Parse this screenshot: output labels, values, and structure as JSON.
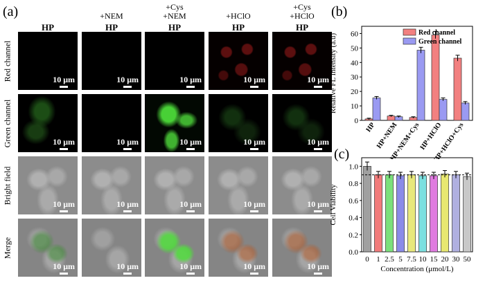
{
  "panels": {
    "a": "(a)",
    "b": "(b)",
    "c": "(c)"
  },
  "columns": [
    {
      "head": [
        "",
        ""
      ],
      "probe": "HP"
    },
    {
      "head": [
        "",
        "+NEM"
      ],
      "probe": "HP"
    },
    {
      "head": [
        "+Cys",
        "+NEM"
      ],
      "probe": "HP"
    },
    {
      "head": [
        "",
        "+HClO"
      ],
      "probe": "HP"
    },
    {
      "head": [
        "+Cys",
        "+HClO"
      ],
      "probe": "HP"
    }
  ],
  "rows": [
    "Red channel",
    "Green channel",
    "Bright field",
    "Merge"
  ],
  "scale_bar": "10 μm",
  "chart_data": [
    {
      "type": "bar",
      "panel": "(b)",
      "categories": [
        "HP",
        "HP+NEM",
        "HP+NEM+Cys",
        "HP+HClO",
        "HP+HClO+Cys"
      ],
      "series": [
        {
          "name": "Red channel",
          "color": "#f28080",
          "values": [
            1,
            3,
            2,
            59,
            43
          ],
          "errors": [
            0.5,
            0.5,
            0.5,
            2.5,
            2
          ]
        },
        {
          "name": "Green channel",
          "color": "#9a9af2",
          "values": [
            15.5,
            2.5,
            48.5,
            14.5,
            12
          ],
          "errors": [
            1,
            0.5,
            2,
            1,
            1
          ]
        }
      ],
      "xlabel": "",
      "ylabel": "Relative FL Intensity (a.u)",
      "ylim": [
        0,
        65
      ],
      "yticks": [
        0,
        10,
        20,
        30,
        40,
        50,
        60
      ],
      "legend": "top-right"
    },
    {
      "type": "bar",
      "panel": "(c)",
      "categories": [
        "0",
        "1",
        "2.5",
        "5",
        "7.5",
        "10",
        "15",
        "20",
        "30",
        "50"
      ],
      "values": [
        1.0,
        0.9,
        0.9,
        0.89,
        0.9,
        0.89,
        0.89,
        0.91,
        0.9,
        0.88
      ],
      "errors": [
        0.05,
        0.04,
        0.04,
        0.04,
        0.04,
        0.04,
        0.04,
        0.04,
        0.04,
        0.04
      ],
      "colors": [
        "#a0a0a0",
        "#f27b7b",
        "#7be07b",
        "#8a8ae8",
        "#e8e87b",
        "#7be0e0",
        "#e07be0",
        "#e8e870",
        "#b0b0e0",
        "#c8c8c8"
      ],
      "reference_line": 0.9,
      "xlabel": "Concentration (μmol/L)",
      "ylabel": "Cell Viability",
      "ylim": [
        0.0,
        1.1
      ],
      "yticks": [
        "0.0",
        "0.2",
        "0.4",
        "0.6",
        "0.8",
        "1.0"
      ]
    }
  ]
}
